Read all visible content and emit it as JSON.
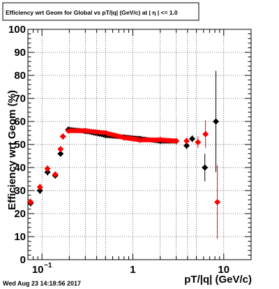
{
  "chart_data": {
    "type": "scatter",
    "title": "Efficiency wrt Geom for Global vs pT/|q| (GeV/c) at | η | <= 1.0",
    "xlabel": "pT/|q| (GeV/c)",
    "ylabel": "Efficiency wrt Geom (%)",
    "x_scale": "log",
    "xlim": [
      0.07,
      20
    ],
    "ylim": [
      0,
      100
    ],
    "x_tick_labels": [
      "10^-1",
      "1",
      "10"
    ],
    "y_tick_labels": [
      "0",
      "10",
      "20",
      "30",
      "40",
      "50",
      "60",
      "70",
      "80",
      "90",
      "100"
    ],
    "grid": true,
    "timestamp": "Wed Aug 23 14:18:56 2017",
    "series": [
      {
        "color": "#000000",
        "marker": "diamond",
        "points": [
          {
            "x": 0.075,
            "y": 24.5,
            "ey": 1.5
          },
          {
            "x": 0.095,
            "y": 30.0,
            "ey": 1.5
          },
          {
            "x": 0.115,
            "y": 38.0,
            "ey": 1.5
          },
          {
            "x": 0.14,
            "y": 36.5,
            "ey": 1.2
          },
          {
            "x": 0.16,
            "y": 46.0,
            "ey": 1.2
          },
          {
            "x": 0.17,
            "y": 53.5,
            "ey": 0.8
          },
          {
            "x": 0.195,
            "y": 56.5,
            "ey": 0.6
          },
          {
            "x": 0.3,
            "y": 55.8,
            "ey": 0.6
          },
          {
            "x": 0.5,
            "y": 54.0,
            "ey": 0.6
          },
          {
            "x": 0.8,
            "y": 53.2,
            "ey": 0.6
          },
          {
            "x": 1.2,
            "y": 52.5,
            "ey": 0.6
          },
          {
            "x": 2.0,
            "y": 51.5,
            "ey": 0.8
          },
          {
            "x": 3.0,
            "y": 51.5,
            "ey": 1.0
          },
          {
            "x": 3.9,
            "y": 49.5,
            "ey": 1.5
          },
          {
            "x": 4.5,
            "y": 52.5,
            "ey": 1.5
          },
          {
            "x": 6.2,
            "y": 40.0,
            "ey": 6.0
          },
          {
            "x": 8.2,
            "y": 60.0,
            "ey": 22.0
          }
        ]
      },
      {
        "color": "#ff0000",
        "marker": "diamond",
        "points": [
          {
            "x": 0.075,
            "y": 25.0,
            "ey": 1.5
          },
          {
            "x": 0.095,
            "y": 31.5,
            "ey": 1.5
          },
          {
            "x": 0.115,
            "y": 39.5,
            "ey": 1.5
          },
          {
            "x": 0.14,
            "y": 37.0,
            "ey": 1.2
          },
          {
            "x": 0.16,
            "y": 48.0,
            "ey": 1.2
          },
          {
            "x": 0.17,
            "y": 53.5,
            "ey": 0.8
          },
          {
            "x": 0.195,
            "y": 56.0,
            "ey": 0.6
          },
          {
            "x": 0.3,
            "y": 56.0,
            "ey": 0.6
          },
          {
            "x": 0.5,
            "y": 55.0,
            "ey": 0.6
          },
          {
            "x": 0.8,
            "y": 53.0,
            "ey": 0.6
          },
          {
            "x": 1.2,
            "y": 52.0,
            "ey": 0.6
          },
          {
            "x": 2.0,
            "y": 52.0,
            "ey": 0.8
          },
          {
            "x": 3.0,
            "y": 51.5,
            "ey": 1.0
          },
          {
            "x": 3.9,
            "y": 51.5,
            "ey": 1.5
          },
          {
            "x": 5.2,
            "y": 51.0,
            "ey": 2.5
          },
          {
            "x": 6.3,
            "y": 54.5,
            "ey": 6.0
          },
          {
            "x": 8.5,
            "y": 25.0,
            "ey": 16.0
          }
        ]
      }
    ]
  }
}
